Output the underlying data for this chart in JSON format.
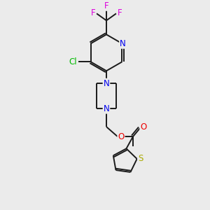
{
  "background_color": "#ebebeb",
  "bond_color": "#1a1a1a",
  "atom_colors": {
    "N": "#0000ee",
    "O": "#ee0000",
    "Cl": "#00bb00",
    "F": "#dd00dd",
    "S": "#aaaa00",
    "C": "#1a1a1a"
  },
  "figsize": [
    3.0,
    3.0
  ],
  "dpi": 100,
  "lw": 1.4,
  "fontsize": 8.5
}
